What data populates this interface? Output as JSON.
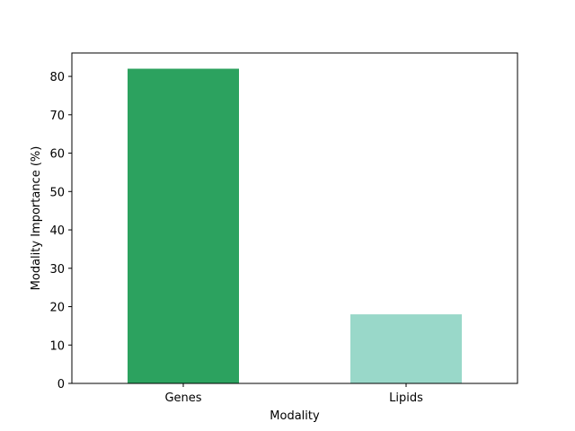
{
  "chart_data": {
    "type": "bar",
    "xlabel": "Modality",
    "ylabel": "Modality Importance (%)",
    "categories": [
      "Genes",
      "Lipids"
    ],
    "values": [
      82,
      18
    ],
    "colors": [
      "#2ca25f",
      "#99d8c9"
    ],
    "ylim": [
      0,
      86.1
    ],
    "yticks": [
      0,
      10,
      20,
      30,
      40,
      50,
      60,
      70,
      80
    ],
    "grid": false
  }
}
